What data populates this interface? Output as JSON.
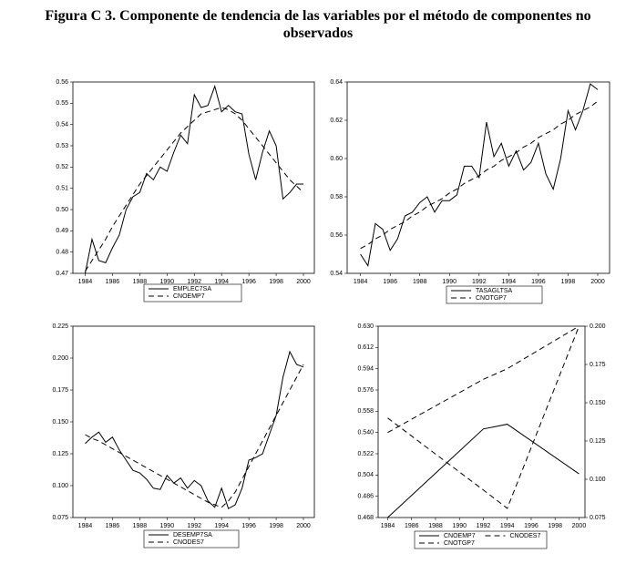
{
  "figure_title": "Figura C 3. Componente de tendencia de las variables por el método de componentes no observados",
  "chart_data": [
    {
      "type": "line",
      "x": [
        1984,
        1984.5,
        1985,
        1985.5,
        1986,
        1986.5,
        1987,
        1987.5,
        1988,
        1988.5,
        1989,
        1989.5,
        1990,
        1990.5,
        1991,
        1991.5,
        1992,
        1992.5,
        1993,
        1993.5,
        1994,
        1994.5,
        1995,
        1995.5,
        1996,
        1996.5,
        1997,
        1997.5,
        1998,
        1998.5,
        1999,
        1999.5,
        2000
      ],
      "xlim": [
        1983.1,
        2000.8
      ],
      "xticks": [
        1984,
        1986,
        1988,
        1990,
        1992,
        1994,
        1996,
        1998,
        2000
      ],
      "ylim": [
        0.47,
        0.56
      ],
      "yticks": [
        0.47,
        0.48,
        0.49,
        {
          "value": 0.5,
          "label": "0.50"
        },
        0.51,
        0.52,
        0.53,
        0.54,
        0.55,
        0.56
      ],
      "series": [
        {
          "name": "EMPLEC7SA",
          "color": "#000000",
          "style": "solid",
          "values": [
            0.47,
            0.486,
            0.476,
            0.475,
            0.482,
            0.488,
            0.5,
            0.506,
            0.508,
            0.517,
            0.514,
            0.52,
            0.518,
            0.527,
            0.535,
            0.531,
            0.554,
            0.548,
            0.549,
            0.558,
            0.546,
            0.549,
            0.546,
            0.545,
            0.526,
            0.514,
            0.527,
            0.537,
            0.53,
            0.505,
            0.508,
            0.512,
            0.512
          ]
        },
        {
          "name": "CNOEMP7",
          "color": "#000000",
          "style": "dashed",
          "values": [
            0.471,
            0.476,
            0.481,
            0.486,
            0.492,
            0.497,
            0.502,
            0.507,
            0.512,
            0.516,
            0.52,
            0.524,
            0.528,
            0.532,
            0.536,
            0.539,
            0.542,
            0.545,
            0.546,
            0.547,
            0.548,
            0.547,
            0.545,
            0.542,
            0.538,
            0.534,
            0.53,
            0.526,
            0.522,
            0.518,
            0.514,
            0.511,
            0.508
          ]
        }
      ]
    },
    {
      "type": "line",
      "x": [
        1984,
        1984.5,
        1985,
        1985.5,
        1986,
        1986.5,
        1987,
        1987.5,
        1988,
        1988.5,
        1989,
        1989.5,
        1990,
        1990.5,
        1991,
        1991.5,
        1992,
        1992.5,
        1993,
        1993.5,
        1994,
        1994.5,
        1995,
        1995.5,
        1996,
        1996.5,
        1997,
        1997.5,
        1998,
        1998.5,
        1999,
        1999.5,
        2000
      ],
      "xlim": [
        1983.1,
        2000.8
      ],
      "xticks": [
        1984,
        1986,
        1988,
        1990,
        1992,
        1994,
        1996,
        1998,
        2000
      ],
      "ylim": [
        0.54,
        0.64
      ],
      "yticks": [
        0.54,
        0.56,
        0.58,
        {
          "value": 0.6,
          "label": "0.60"
        },
        0.62,
        0.64
      ],
      "series": [
        {
          "name": "TASAGLTSA",
          "color": "#000000",
          "style": "solid",
          "values": [
            0.55,
            0.544,
            0.566,
            0.563,
            0.552,
            0.558,
            0.57,
            0.572,
            0.577,
            0.58,
            0.572,
            0.578,
            0.578,
            0.581,
            0.596,
            0.596,
            0.59,
            0.619,
            0.601,
            0.608,
            0.596,
            0.604,
            0.594,
            0.598,
            0.608,
            0.592,
            0.584,
            0.6,
            0.625,
            0.615,
            0.625,
            0.639,
            0.636
          ]
        },
        {
          "name": "CNOTGP7",
          "color": "#000000",
          "style": "dashed",
          "values": [
            0.553,
            0.555,
            0.558,
            0.56,
            0.563,
            0.565,
            0.567,
            0.57,
            0.572,
            0.575,
            0.577,
            0.579,
            0.582,
            0.584,
            0.587,
            0.589,
            0.591,
            0.594,
            0.596,
            0.599,
            0.601,
            0.603,
            0.606,
            0.608,
            0.611,
            0.613,
            0.615,
            0.618,
            0.62,
            0.623,
            0.625,
            0.627,
            0.63
          ]
        }
      ]
    },
    {
      "type": "line",
      "x": [
        1984,
        1984.5,
        1985,
        1985.5,
        1986,
        1986.5,
        1987,
        1987.5,
        1988,
        1988.5,
        1989,
        1989.5,
        1990,
        1990.5,
        1991,
        1991.5,
        1992,
        1992.5,
        1993,
        1993.5,
        1994,
        1994.5,
        1995,
        1995.5,
        1996,
        1996.5,
        1997,
        1997.5,
        1998,
        1998.5,
        1999,
        1999.5,
        2000
      ],
      "xlim": [
        1983.1,
        2000.8
      ],
      "xticks": [
        1984,
        1986,
        1988,
        1990,
        1992,
        1994,
        1996,
        1998,
        2000
      ],
      "ylim": [
        0.075,
        0.225
      ],
      "yticks": [
        0.075,
        {
          "value": 0.1,
          "label": "0.100"
        },
        0.125,
        {
          "value": 0.15,
          "label": "0.150"
        },
        0.175,
        {
          "value": 0.2,
          "label": "0.200"
        },
        0.225
      ],
      "series": [
        {
          "name": "DESEMP7SA",
          "color": "#000000",
          "style": "solid",
          "values": [
            0.133,
            0.138,
            0.142,
            0.134,
            0.138,
            0.128,
            0.12,
            0.112,
            0.11,
            0.105,
            0.098,
            0.097,
            0.108,
            0.102,
            0.106,
            0.098,
            0.104,
            0.1,
            0.088,
            0.083,
            0.098,
            0.082,
            0.085,
            0.098,
            0.12,
            0.122,
            0.125,
            0.14,
            0.155,
            0.185,
            0.205,
            0.195,
            0.193
          ]
        },
        {
          "name": "CNODES7",
          "color": "#000000",
          "style": "dashed",
          "values": [
            0.14,
            0.137,
            0.135,
            0.132,
            0.129,
            0.126,
            0.123,
            0.12,
            0.117,
            0.114,
            0.111,
            0.108,
            0.105,
            0.102,
            0.099,
            0.096,
            0.093,
            0.09,
            0.087,
            0.085,
            0.083,
            0.088,
            0.095,
            0.105,
            0.115,
            0.125,
            0.135,
            0.145,
            0.155,
            0.165,
            0.175,
            0.185,
            0.195
          ]
        }
      ]
    },
    {
      "type": "line",
      "x": [
        1984,
        1992,
        1994,
        2000
      ],
      "xlim": [
        1983.2,
        2000.5
      ],
      "xticks": [
        1984,
        1986,
        1988,
        1990,
        1992,
        1994,
        1996,
        1998,
        2000
      ],
      "ylim": [
        0.468,
        0.63
      ],
      "yticks": [
        0.468,
        0.486,
        0.504,
        0.522,
        {
          "value": 0.54,
          "label": "0.540"
        },
        0.558,
        0.576,
        0.594,
        0.612,
        {
          "value": 0.63,
          "label": "0.630"
        }
      ],
      "y2lim": [
        0.075,
        0.2
      ],
      "y2ticks": [
        0.075,
        {
          "value": 0.1,
          "label": "0.100"
        },
        0.125,
        {
          "value": 0.15,
          "label": "0.150"
        },
        0.175,
        {
          "value": 0.2,
          "label": "0.200"
        }
      ],
      "series": [
        {
          "name": "CNOEMP7",
          "color": "#000000",
          "style": "solid",
          "values": [
            0.468,
            0.543,
            0.547,
            0.505
          ]
        },
        {
          "name": "CNODES7",
          "color": "#000000",
          "style": "dashed",
          "axis": "y2",
          "values": [
            0.14,
            0.093,
            0.081,
            0.2
          ]
        },
        {
          "name": "CNOTGP7",
          "color": "#000000",
          "style": "dashed",
          "values": [
            0.54,
            0.585,
            0.594,
            0.63
          ]
        }
      ]
    }
  ]
}
